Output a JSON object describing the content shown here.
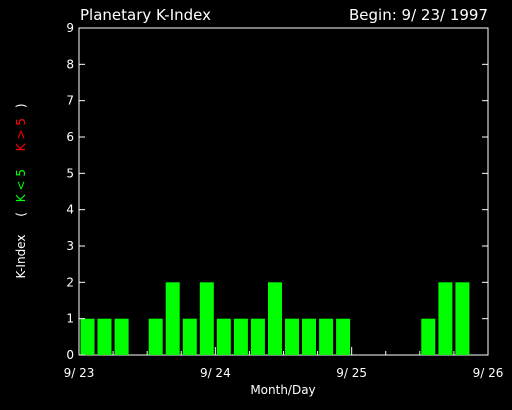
{
  "colors": {
    "background": "#000000",
    "axes": "#ffffff",
    "bar_low": "#00ff00",
    "bar_high": "#ff0000",
    "text": "#ffffff"
  },
  "header": {
    "title": "Planetary K-Index",
    "begin": "Begin: 9/ 23/ 1997"
  },
  "ylabel": {
    "main": "K-Index",
    "open": "(",
    "low": "K < 5",
    "high": "K > 5",
    "close": ")"
  },
  "chart_data": {
    "type": "bar",
    "title": "Planetary K-Index",
    "subtitle": "Begin: 9/ 23/ 1997",
    "xlabel": "Month/Day",
    "ylabel": "K-Index",
    "ylim": [
      0,
      9
    ],
    "xlim": [
      0,
      72
    ],
    "x_unit": "hours since 9/23 00:00 (3-hour bins)",
    "yticks": [
      "0",
      "1",
      "2",
      "3",
      "4",
      "5",
      "6",
      "7",
      "8",
      "9"
    ],
    "xticks": [
      {
        "label": "9/ 23",
        "x": 0
      },
      {
        "label": "9/ 24",
        "x": 24
      },
      {
        "label": "9/ 25",
        "x": 48
      },
      {
        "label": "9/ 26",
        "x": 72
      }
    ],
    "bin_hours": 3,
    "values": [
      1,
      1,
      1,
      0,
      1,
      2,
      1,
      2,
      1,
      1,
      1,
      2,
      1,
      1,
      1,
      1,
      0,
      0,
      0,
      0,
      1,
      2,
      2,
      0
    ],
    "threshold": 5,
    "grid": false
  }
}
